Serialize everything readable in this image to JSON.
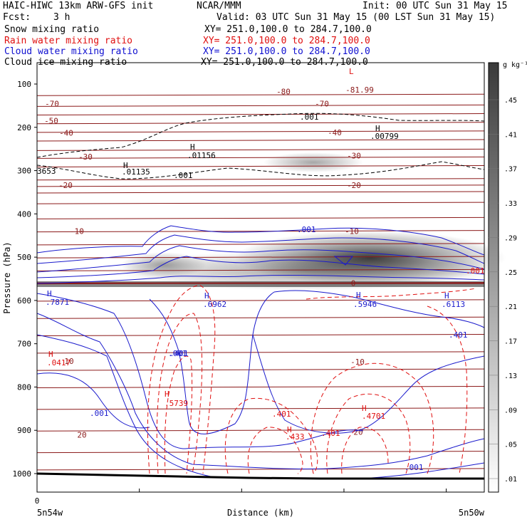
{
  "header": {
    "model": "HAIC-HIWC 13km ARW-GFS init",
    "org": "NCAR/MMM",
    "init": "Init: 00 UTC Sun 31 May 15",
    "fcst_label": "Fcst:",
    "fcst_value": "3 h",
    "valid": "Valid: 03 UTC Sun 31 May 15 (00 LST Sun 31 May 15)"
  },
  "fields": [
    {
      "name": "Snow mixing ratio",
      "xy": "XY= 251.0,100.0 to 284.7,100.0",
      "color": "#000000"
    },
    {
      "name": "Rain water mixing ratio",
      "xy": "XY= 251.0,100.0 to 284.7,100.0",
      "color": "#e01010"
    },
    {
      "name": "Cloud water mixing ratio",
      "xy": "XY= 251.0,100.0 to 284.7,100.0",
      "color": "#1010d0"
    },
    {
      "name": "Cloud ice mixing ratio",
      "xy": "XY= 251.0,100.0 to 284.7,100.0",
      "color": "#000000"
    }
  ],
  "colorbar": {
    "unit": "g kg⁻¹",
    "labels": [
      ".45",
      ".41",
      ".37",
      ".33",
      ".29",
      ".25",
      ".21",
      ".17",
      ".13",
      ".09",
      ".05",
      ".01"
    ]
  },
  "chart_data": {
    "type": "contour cross-section",
    "ylabel": "Pressure (hPa)",
    "xlabel": "Distance (km)",
    "x_start_label": "5n54w",
    "x_end_label": "5n50w",
    "x_zero_label": "0",
    "yticks": [
      100,
      200,
      300,
      400,
      500,
      600,
      700,
      800,
      900,
      1000
    ],
    "ylim": [
      1000,
      50
    ],
    "x_tick_count": 5,
    "temperature_isotherms": [
      {
        "label": "-80",
        "p": 117
      },
      {
        "label": "-81.99",
        "p": 113
      },
      {
        "label": "-70",
        "p": 145
      },
      {
        "label": "-70",
        "p": 145
      },
      {
        "label": "-50",
        "p": 185
      },
      {
        "label": "-40",
        "p": 213
      },
      {
        "label": "-40",
        "p": 212
      },
      {
        "label": "-30",
        "p": 268
      },
      {
        "label": "-30",
        "p": 265
      },
      {
        "label": "-20",
        "p": 334
      },
      {
        "label": "-20",
        "p": 334
      },
      {
        "label": "-10",
        "p": 440
      },
      {
        "label": "-10",
        "p": 440
      },
      {
        "label": "0",
        "p": 560
      },
      {
        "label": "10",
        "p": 740
      },
      {
        "label": "-10",
        "p": 742
      },
      {
        "label": "20",
        "p": 910
      },
      {
        "label": "20",
        "p": 904
      }
    ],
    "annotations": [
      {
        "text": "L",
        "color": "red"
      },
      {
        "text": ".001",
        "color": "black"
      },
      {
        "text": "H",
        "color": "black"
      },
      {
        "text": ".00799",
        "color": "black"
      },
      {
        "text": "H",
        "color": "black"
      },
      {
        "text": ".01156",
        "color": "black"
      },
      {
        "text": "H",
        "color": "black"
      },
      {
        "text": ".01135",
        "color": "black"
      },
      {
        "text": ".001",
        "color": "black"
      },
      {
        "text": "3653",
        "color": "black"
      },
      {
        "text": ".001",
        "color": "blue"
      },
      {
        "text": ".001",
        "color": "red"
      },
      {
        "text": "H",
        "color": "blue"
      },
      {
        "text": ".7871",
        "color": "blue"
      },
      {
        "text": "H",
        "color": "blue"
      },
      {
        "text": ".6962",
        "color": "blue"
      },
      {
        "text": "H",
        "color": "blue"
      },
      {
        "text": ".5946",
        "color": "blue"
      },
      {
        "text": "H",
        "color": "blue"
      },
      {
        "text": ".6113",
        "color": "blue"
      },
      {
        "text": ".401",
        "color": "blue"
      },
      {
        "text": ".401",
        "color": "blue"
      },
      {
        "text": "H",
        "color": "red"
      },
      {
        "text": ".0417",
        "color": "red"
      },
      {
        "text": "H",
        "color": "red"
      },
      {
        "text": ".5739",
        "color": "red"
      },
      {
        "text": ".401",
        "color": "red"
      },
      {
        "text": "H",
        "color": "red"
      },
      {
        "text": ".4701",
        "color": "red"
      },
      {
        "text": "H",
        "color": "red"
      },
      {
        "text": ".433",
        "color": "red"
      },
      {
        "text": ".401",
        "color": "red"
      },
      {
        "text": ".001",
        "color": "blue"
      },
      {
        "text": ".001",
        "color": "blue"
      },
      {
        "text": ".001",
        "color": "blue"
      }
    ]
  }
}
